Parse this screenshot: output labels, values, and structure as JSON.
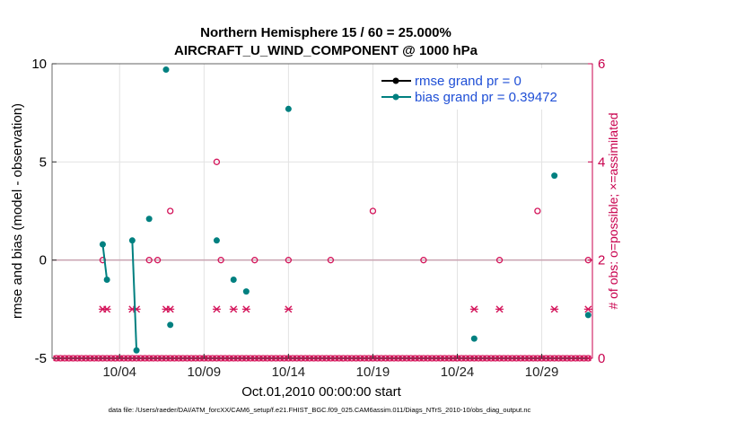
{
  "chart_data": {
    "type": "line",
    "title": "Northern Hemisphere 15 / 60 = 25.000%",
    "subtitle": "AIRCRAFT_U_WIND_COMPONENT @ 1000 hPa",
    "xlabel": "Oct.01,2010 00:00:00 start",
    "ylabel": "rmse and bias (model - observation)",
    "y2label": "# of obs: o=possible; ×=assimilated",
    "footer": "data file: /Users/raeder/DAI/ATM_forcXX/CAM6_setup/f.e21.FHIST_BGC.f09_025.CAM6assim.011/Diags_NTrS_2010-10/obs_diag_output.nc",
    "xlim": [
      0.0,
      32.0
    ],
    "ylim": [
      -5,
      10
    ],
    "y2lim": [
      0,
      6
    ],
    "yticks": [
      -5,
      0,
      5,
      10
    ],
    "y2ticks": [
      0,
      2,
      4,
      6
    ],
    "xticks": [
      4,
      9,
      14,
      19,
      24,
      29
    ],
    "xtick_labels": [
      "10/04",
      "10/09",
      "10/14",
      "10/19",
      "10/24",
      "10/29"
    ],
    "grid": true,
    "legend_position": "top-right",
    "colors": {
      "rmse": "#000000",
      "bias": "#008080",
      "obs": "#d4145a",
      "zero_line": "#c8a2b0"
    },
    "series": [
      {
        "name": "rmse grand pr = 0",
        "axis": "left",
        "x": [],
        "y": []
      },
      {
        "name": "bias grand pr = 0.39472",
        "axis": "left",
        "segments": [
          {
            "x": [
              3.0,
              3.25
            ],
            "y": [
              0.8,
              -1.0
            ]
          },
          {
            "x": [
              4.75,
              5.0
            ],
            "y": [
              1.0,
              -4.6
            ]
          }
        ],
        "points": {
          "x": [
            3.0,
            3.25,
            4.75,
            5.0,
            5.75,
            6.75,
            7.0,
            9.75,
            10.75,
            11.5,
            14.0,
            25.0,
            29.75,
            31.75
          ],
          "y": [
            0.8,
            -1.0,
            1.0,
            -4.6,
            2.1,
            9.7,
            -3.3,
            1.0,
            -1.0,
            -1.6,
            7.7,
            -4.0,
            4.3,
            -2.8
          ]
        }
      },
      {
        "name": "possible obs",
        "axis": "right",
        "x": [
          3.0,
          5.75,
          6.25,
          7.0,
          9.75,
          10.0,
          12.0,
          14.0,
          16.5,
          19.0,
          22.0,
          26.5,
          28.75,
          31.75
        ],
        "y": [
          2,
          2,
          2,
          3,
          4,
          2,
          2,
          2,
          2,
          3,
          2,
          2,
          3,
          2
        ]
      },
      {
        "name": "assimilated obs",
        "axis": "right",
        "x": [
          3.0,
          3.25,
          4.75,
          5.0,
          6.75,
          7.0,
          9.75,
          10.75,
          11.5,
          14.0,
          25.0,
          26.5,
          29.75,
          31.75
        ],
        "y": [
          1,
          1,
          1,
          1,
          1,
          1,
          1,
          1,
          1,
          1,
          1,
          1,
          1,
          1
        ]
      }
    ]
  }
}
